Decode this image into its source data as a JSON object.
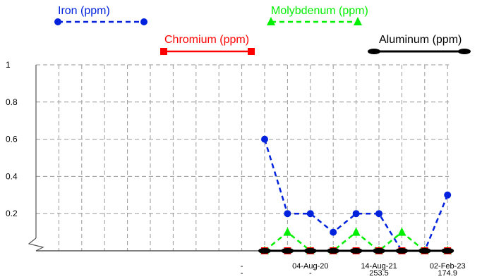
{
  "chart_data": {
    "type": "line",
    "ylim": [
      0,
      1
    ],
    "y_ticks": [
      "0.2",
      "0.4",
      "0.6",
      "0.8",
      "1"
    ],
    "grid": true,
    "legend_placement": "top",
    "x_count": 18,
    "x_labels": [
      {
        "index": 9,
        "lines": [
          "-",
          "-"
        ]
      },
      {
        "index": 12,
        "lines": [
          "04-Aug-20",
          "-"
        ]
      },
      {
        "index": 15,
        "lines": [
          "14-Aug-21",
          "253.5"
        ]
      },
      {
        "index": 18,
        "lines": [
          "02-Feb-23",
          "174.9"
        ]
      }
    ],
    "series": [
      {
        "name": "Iron (ppm)",
        "color": "#0022dd",
        "marker": "circle",
        "dash": "dashed",
        "points": [
          [
            10,
            0.6
          ],
          [
            11,
            0.2
          ],
          [
            12,
            0.2
          ],
          [
            13,
            0.1
          ],
          [
            14,
            0.2
          ],
          [
            15,
            0.2
          ],
          [
            16,
            0
          ],
          [
            17,
            0
          ],
          [
            18,
            0.3
          ]
        ]
      },
      {
        "name": "Chromium (ppm)",
        "color": "#ff0000",
        "marker": "square",
        "dash": "solid",
        "points": [
          [
            10,
            0
          ],
          [
            11,
            0
          ],
          [
            12,
            0
          ],
          [
            13,
            0
          ],
          [
            14,
            0
          ],
          [
            15,
            0
          ],
          [
            16,
            0
          ],
          [
            17,
            0
          ],
          [
            18,
            0
          ]
        ]
      },
      {
        "name": "Molybdenum (ppm)",
        "color": "#00ee00",
        "marker": "triangle",
        "dash": "dashed",
        "points": [
          [
            10,
            0
          ],
          [
            11,
            0.1
          ],
          [
            12,
            0
          ],
          [
            13,
            0
          ],
          [
            14,
            0.1
          ],
          [
            15,
            0
          ],
          [
            16,
            0.1
          ],
          [
            17,
            0
          ],
          [
            18,
            0
          ]
        ]
      },
      {
        "name": "Aluminum (ppm)",
        "color": "#000000",
        "marker": "ellipse",
        "dash": "solid",
        "points": [
          [
            10,
            0
          ],
          [
            11,
            0
          ],
          [
            12,
            0
          ],
          [
            13,
            0
          ],
          [
            14,
            0
          ],
          [
            15,
            0
          ],
          [
            16,
            0
          ],
          [
            17,
            0
          ],
          [
            18,
            0
          ]
        ]
      }
    ]
  }
}
